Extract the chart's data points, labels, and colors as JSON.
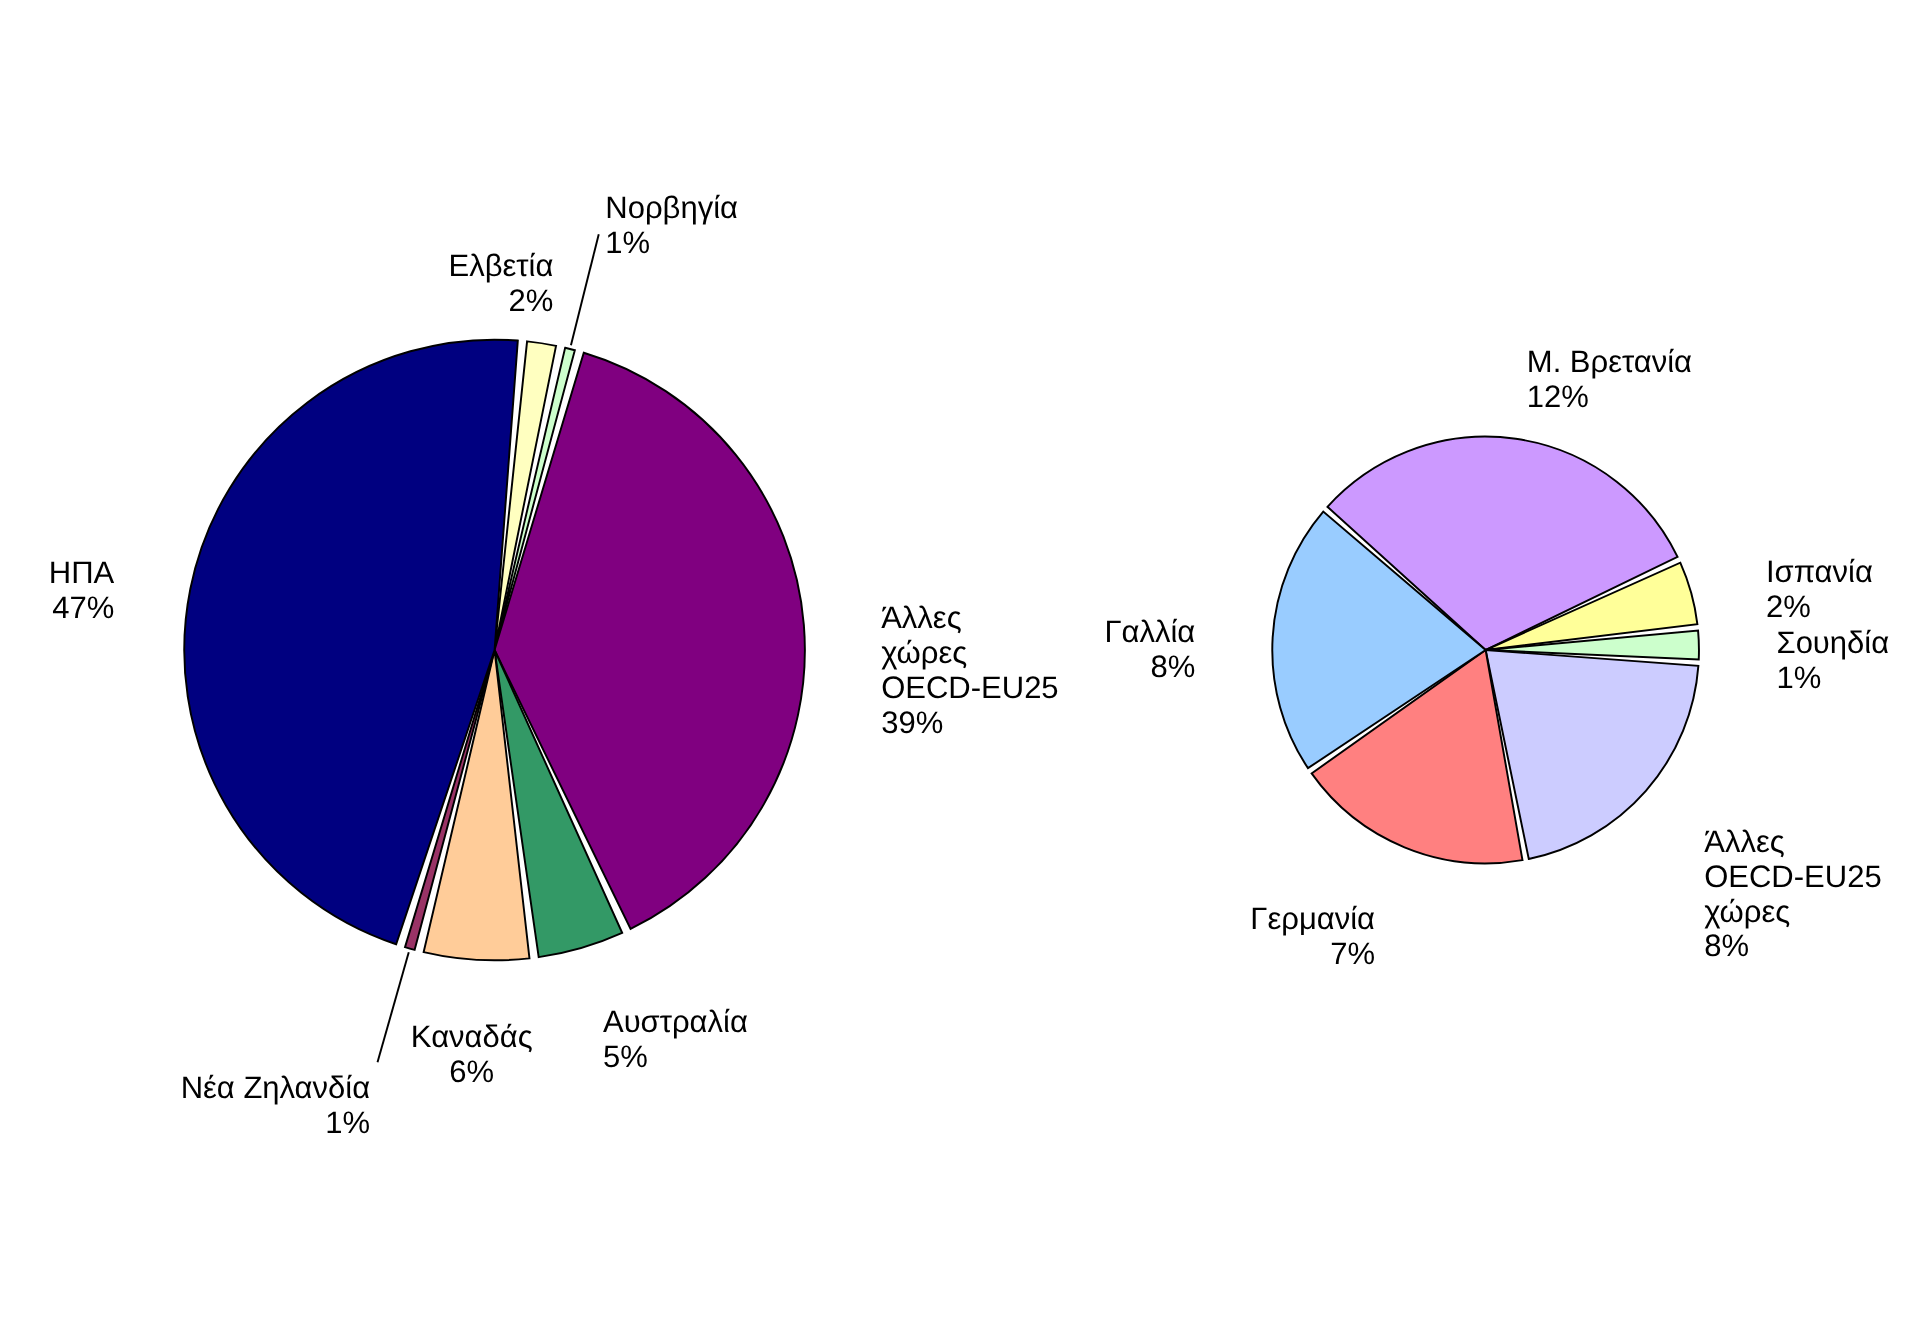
{
  "chart_data": [
    {
      "type": "pie",
      "categories": [
        "Ελβετία",
        "Νορβηγία",
        "Άλλες\nχώρες\nOECD-EU25",
        "Αυστραλία",
        "Καναδάς",
        "Νέα Ζηλανδία",
        "ΗΠΑ"
      ],
      "values": [
        2,
        1,
        39,
        5,
        6,
        1,
        47
      ],
      "colors": [
        "#ffffc0",
        "#ccffcc",
        "#800080",
        "#339966",
        "#ffcc99",
        "#993366",
        "#000080"
      ],
      "value_labels": [
        "2%",
        "1%",
        "39%",
        "5%",
        "6%",
        "1%",
        "47%"
      ]
    },
    {
      "type": "pie",
      "categories": [
        "Μ. Βρετανία",
        "Ισπανία",
        "Σουηδία",
        "Άλλες\nOECD-EU25\nχώρες",
        "Γερμανία",
        "Γαλλία"
      ],
      "values": [
        12,
        2,
        1,
        8,
        7,
        8
      ],
      "colors": [
        "#cc99ff",
        "#ffff99",
        "#ccffcc",
        "#ccccff",
        "#ff8080",
        "#99ccff"
      ],
      "value_labels": [
        "12%",
        "2%",
        "1%",
        "8%",
        "7%",
        "8%"
      ]
    }
  ]
}
